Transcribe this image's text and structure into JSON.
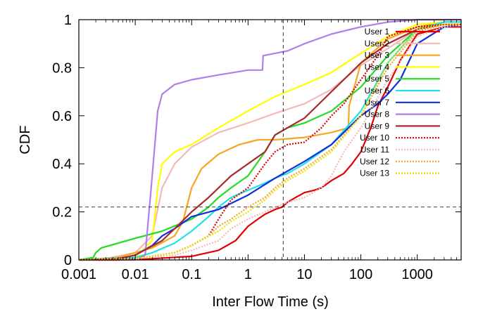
{
  "chart_data": {
    "type": "line",
    "title": "",
    "xlabel": "Inter Flow Time (s)",
    "ylabel": "CDF",
    "xscale": "log",
    "xlim": [
      0.001,
      6000
    ],
    "ylim": [
      0,
      1
    ],
    "x_ticks": [
      {
        "value": 0.001,
        "label": "0.001"
      },
      {
        "value": 0.01,
        "label": "0.01"
      },
      {
        "value": 0.1,
        "label": "0.1"
      },
      {
        "value": 1,
        "label": "1"
      },
      {
        "value": 10,
        "label": "10"
      },
      {
        "value": 100,
        "label": "100"
      },
      {
        "value": 1000,
        "label": "1000"
      }
    ],
    "y_ticks": [
      {
        "value": 0,
        "label": "0"
      },
      {
        "value": 0.2,
        "label": "0.2"
      },
      {
        "value": 0.4,
        "label": "0.4"
      },
      {
        "value": 0.6,
        "label": "0.6"
      },
      {
        "value": 0.8,
        "label": "0.8"
      },
      {
        "value": 1,
        "label": "1"
      }
    ],
    "grid": false,
    "legend_position": "top-right",
    "reference_lines": [
      {
        "orientation": "vertical",
        "x": 4.2,
        "style": "dashed"
      },
      {
        "orientation": "horizontal",
        "y": 0.22,
        "style": "dashed"
      }
    ],
    "series": [
      {
        "name": "User 1",
        "color": "#e00000",
        "dash": "solid",
        "x": [
          0.001,
          0.005,
          0.02,
          0.1,
          0.3,
          0.6,
          1,
          1.5,
          2,
          3,
          4,
          5,
          7,
          10,
          15,
          20,
          30,
          50,
          70,
          100,
          150,
          200,
          300,
          500,
          1000,
          3000,
          6000
        ],
        "y": [
          0,
          0,
          0.005,
          0.015,
          0.04,
          0.08,
          0.14,
          0.17,
          0.19,
          0.21,
          0.22,
          0.24,
          0.26,
          0.28,
          0.29,
          0.3,
          0.33,
          0.36,
          0.4,
          0.45,
          0.55,
          0.64,
          0.72,
          0.83,
          0.94,
          0.97,
          0.97
        ]
      },
      {
        "name": "User 2",
        "color": "#f5b8b8",
        "dash": "solid",
        "x": [
          0.001,
          0.003,
          0.01,
          0.02,
          0.03,
          0.05,
          0.1,
          0.3,
          1,
          3,
          10,
          30,
          100,
          300,
          1000,
          3000,
          6000
        ],
        "y": [
          0,
          0.005,
          0.03,
          0.1,
          0.3,
          0.4,
          0.47,
          0.53,
          0.57,
          0.61,
          0.65,
          0.71,
          0.81,
          0.88,
          0.96,
          0.98,
          0.98
        ]
      },
      {
        "name": "User 3",
        "color": "#f5a623",
        "dash": "solid",
        "x": [
          0.001,
          0.005,
          0.02,
          0.05,
          0.07,
          0.1,
          0.15,
          0.3,
          0.7,
          1.5,
          3,
          10,
          30,
          60,
          62,
          100,
          300,
          1000,
          3000,
          6000
        ],
        "y": [
          0,
          0.01,
          0.05,
          0.1,
          0.16,
          0.3,
          0.38,
          0.44,
          0.48,
          0.5,
          0.5,
          0.51,
          0.53,
          0.55,
          0.64,
          0.82,
          0.92,
          0.97,
          0.99,
          0.99
        ]
      },
      {
        "name": "User 4",
        "color": "#ffff00",
        "dash": "solid",
        "x": [
          0.001,
          0.01,
          0.02,
          0.025,
          0.03,
          0.05,
          0.1,
          0.3,
          1,
          3,
          10,
          30,
          100,
          300,
          1000,
          3000,
          6000
        ],
        "y": [
          0,
          0.01,
          0.08,
          0.3,
          0.4,
          0.45,
          0.48,
          0.55,
          0.62,
          0.68,
          0.73,
          0.78,
          0.86,
          0.93,
          0.98,
          0.99,
          0.99
        ]
      },
      {
        "name": "User 5",
        "color": "#22dd22",
        "dash": "solid",
        "x": [
          0.001,
          0.0018,
          0.002,
          0.0025,
          0.005,
          0.01,
          0.03,
          0.1,
          0.2,
          0.3,
          0.5,
          1,
          2,
          3,
          5,
          10,
          30,
          100,
          300,
          1000,
          3000,
          6000
        ],
        "y": [
          0,
          0.01,
          0.03,
          0.05,
          0.07,
          0.09,
          0.12,
          0.17,
          0.22,
          0.26,
          0.3,
          0.35,
          0.45,
          0.52,
          0.55,
          0.57,
          0.62,
          0.72,
          0.85,
          0.96,
          0.99,
          0.99
        ]
      },
      {
        "name": "User 6",
        "color": "#22e0e8",
        "dash": "solid",
        "x": [
          0.001,
          0.01,
          0.02,
          0.05,
          0.1,
          0.2,
          0.3,
          0.5,
          1,
          2,
          3,
          5,
          10,
          30,
          100,
          300,
          1000,
          3000,
          6000
        ],
        "y": [
          0,
          0.01,
          0.03,
          0.07,
          0.12,
          0.18,
          0.22,
          0.26,
          0.29,
          0.32,
          0.34,
          0.36,
          0.4,
          0.48,
          0.62,
          0.82,
          0.96,
          0.99,
          0.99
        ]
      },
      {
        "name": "User 7",
        "color": "#1030d8",
        "dash": "solid",
        "x": [
          0.001,
          0.005,
          0.01,
          0.02,
          0.03,
          0.05,
          0.1,
          0.3,
          1,
          3,
          10,
          30,
          100,
          200,
          300,
          500,
          1000,
          3000,
          6000
        ],
        "y": [
          0,
          0.005,
          0.02,
          0.06,
          0.1,
          0.13,
          0.18,
          0.21,
          0.27,
          0.34,
          0.41,
          0.48,
          0.6,
          0.65,
          0.69,
          0.75,
          0.9,
          0.97,
          0.98
        ]
      },
      {
        "name": "User 8",
        "color": "#b07ee8",
        "dash": "solid",
        "x": [
          0.001,
          0.01,
          0.015,
          0.02,
          0.025,
          0.03,
          0.05,
          0.1,
          0.3,
          1,
          1.8,
          1.85,
          3,
          5,
          10,
          30,
          100,
          300,
          1000,
          3000,
          6000
        ],
        "y": [
          0,
          0,
          0.02,
          0.35,
          0.62,
          0.69,
          0.73,
          0.75,
          0.77,
          0.79,
          0.79,
          0.85,
          0.86,
          0.87,
          0.9,
          0.94,
          0.97,
          0.99,
          1,
          1,
          1
        ]
      },
      {
        "name": "User 9",
        "color": "#a82a2a",
        "dash": "solid",
        "x": [
          0.001,
          0.005,
          0.01,
          0.03,
          0.05,
          0.1,
          0.2,
          0.3,
          0.5,
          1,
          2,
          3,
          5,
          10,
          30,
          100,
          300,
          1000,
          3000,
          6000
        ],
        "y": [
          0,
          0.005,
          0.02,
          0.08,
          0.13,
          0.2,
          0.26,
          0.3,
          0.35,
          0.4,
          0.45,
          0.52,
          0.55,
          0.59,
          0.7,
          0.82,
          0.9,
          0.96,
          0.98,
          0.98
        ]
      },
      {
        "name": "User 10",
        "color": "#e00000",
        "dash": "dotted",
        "x": [
          0.001,
          0.005,
          0.01,
          0.05,
          0.1,
          0.2,
          0.3,
          0.5,
          1,
          2,
          3,
          5,
          10,
          20,
          30,
          50,
          100,
          200,
          300,
          1000,
          3000,
          6000
        ],
        "y": [
          0,
          0,
          0.005,
          0.03,
          0.06,
          0.1,
          0.17,
          0.25,
          0.3,
          0.4,
          0.45,
          0.48,
          0.49,
          0.55,
          0.6,
          0.65,
          0.75,
          0.85,
          0.93,
          0.97,
          0.98,
          0.98
        ]
      },
      {
        "name": "User 11",
        "color": "#f5b8b8",
        "dash": "dotted",
        "x": [
          0.001,
          0.01,
          0.05,
          0.1,
          0.3,
          0.5,
          1,
          2,
          3,
          5,
          10,
          20,
          30,
          50,
          100,
          300,
          1000,
          3000,
          6000
        ],
        "y": [
          0,
          0.005,
          0.02,
          0.04,
          0.08,
          0.13,
          0.17,
          0.2,
          0.22,
          0.24,
          0.26,
          0.3,
          0.35,
          0.45,
          0.55,
          0.75,
          0.93,
          0.97,
          0.98
        ]
      },
      {
        "name": "User 12",
        "color": "#f5a623",
        "dash": "dotted",
        "x": [
          0.001,
          0.01,
          0.05,
          0.1,
          0.2,
          0.3,
          0.5,
          1,
          2,
          3,
          5,
          10,
          30,
          100,
          300,
          1000,
          3000,
          6000
        ],
        "y": [
          0,
          0.005,
          0.03,
          0.06,
          0.1,
          0.14,
          0.17,
          0.22,
          0.26,
          0.3,
          0.34,
          0.38,
          0.46,
          0.6,
          0.8,
          0.95,
          0.98,
          0.98
        ]
      },
      {
        "name": "User 13",
        "color": "#eedd00",
        "dash": "dotted",
        "x": [
          0.001,
          0.01,
          0.05,
          0.1,
          0.3,
          0.5,
          1,
          2,
          3,
          5,
          10,
          30,
          100,
          300,
          1000,
          3000,
          6000
        ],
        "y": [
          0,
          0.005,
          0.03,
          0.06,
          0.12,
          0.16,
          0.2,
          0.25,
          0.29,
          0.33,
          0.37,
          0.45,
          0.6,
          0.82,
          0.96,
          0.98,
          0.98
        ]
      }
    ]
  }
}
